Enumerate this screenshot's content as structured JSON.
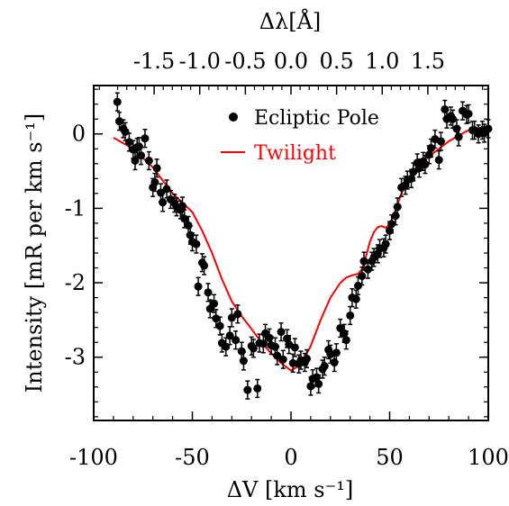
{
  "chart_data": {
    "type": "scatter",
    "xlabel": "ΔV [km s⁻¹]",
    "ylabel": "Intensity [mR per km s⁻¹]",
    "top_axis_label": "Δλ[Å]",
    "xlim": [
      -100,
      100
    ],
    "ylim": [
      -3.85,
      0.65
    ],
    "x_ticks": [
      -100,
      -50,
      0,
      50,
      100
    ],
    "x_tick_labels": [
      "-100",
      "-50",
      "0",
      "50",
      "100"
    ],
    "y_ticks": [
      0,
      -1,
      -2,
      -3
    ],
    "y_tick_labels": [
      "0",
      "-1",
      "-2",
      "-3"
    ],
    "top_ticks": [
      -1.5,
      -1.0,
      -0.5,
      0.0,
      0.5,
      1.0,
      1.5
    ],
    "top_tick_labels": [
      "-1.5",
      "-1.0",
      "-0.5",
      "0.0",
      "0.5",
      "1.0",
      "1.5"
    ],
    "top_unit_km_s_per_angstrom": 46.25,
    "legend_position": "top-right",
    "series": [
      {
        "name": "Ecliptic Pole",
        "style": "points-with-errorbars",
        "color": "#000000",
        "error": 0.12,
        "x": [
          -88,
          -87,
          -85,
          -84,
          -82,
          -80,
          -79,
          -78,
          -77,
          -76,
          -74,
          -72,
          -70,
          -69,
          -68,
          -66,
          -65,
          -63,
          -61,
          -59,
          -58,
          -56,
          -55,
          -54,
          -52,
          -51,
          -50,
          -48,
          -47,
          -45,
          -44,
          -42,
          -41,
          -39,
          -38,
          -36,
          -35,
          -33,
          -31,
          -30,
          -28,
          -27,
          -25,
          -24,
          -22,
          -20,
          -19,
          -17,
          -16,
          -14,
          -13,
          -11,
          -10,
          -8,
          -7,
          -5,
          -4,
          -2,
          -1,
          1,
          2,
          4,
          5,
          7,
          8,
          10,
          11,
          13,
          14,
          16,
          17,
          19,
          20,
          22,
          23,
          25,
          27,
          28,
          30,
          31,
          33,
          34,
          36,
          37,
          39,
          41,
          42,
          44,
          45,
          47,
          48,
          50,
          51,
          53,
          54,
          56,
          58,
          59,
          61,
          62,
          64,
          65,
          67,
          68,
          70,
          71,
          73,
          75,
          76,
          78,
          79,
          81,
          82,
          84,
          85,
          87,
          89,
          90,
          92,
          93,
          95,
          97,
          98,
          100
        ],
        "y": [
          0.43,
          0.17,
          0.07,
          0.03,
          -0.11,
          -0.21,
          -0.36,
          -0.18,
          -0.17,
          -0.29,
          -0.06,
          -0.36,
          -0.72,
          -0.65,
          -0.46,
          -0.79,
          -0.92,
          -0.74,
          -0.88,
          -0.93,
          -0.98,
          -1.02,
          -0.97,
          -1.14,
          -1.23,
          -1.36,
          -1.45,
          -1.48,
          -2.05,
          -1.73,
          -1.77,
          -2.13,
          -2.35,
          -2.28,
          -2.48,
          -2.58,
          -2.81,
          -2.86,
          -2.71,
          -2.47,
          -2.77,
          -2.42,
          -2.92,
          -3.05,
          -3.44,
          -2.85,
          -2.88,
          -3.42,
          -2.81,
          -2.82,
          -2.68,
          -2.74,
          -2.84,
          -2.86,
          -2.98,
          -2.66,
          -3.03,
          -2.75,
          -2.83,
          -3.08,
          -2.87,
          -3.09,
          -3.04,
          -3.07,
          -3.02,
          -3.39,
          -3.29,
          -3.27,
          -3.36,
          -3.16,
          -3.12,
          -2.9,
          -2.96,
          -3.07,
          -2.94,
          -2.61,
          -2.68,
          -2.77,
          -2.44,
          -2.2,
          -2.22,
          -2.04,
          -1.91,
          -1.71,
          -1.82,
          -1.71,
          -1.66,
          -1.61,
          -1.54,
          -1.53,
          -1.48,
          -1.3,
          -1.21,
          -1.1,
          -0.98,
          -0.72,
          -0.69,
          -0.62,
          -0.6,
          -0.51,
          -0.39,
          -0.46,
          -0.37,
          -0.41,
          -0.28,
          -0.19,
          -0.07,
          -0.35,
          -0.1,
          0.33,
          0.2,
          0.24,
          0.2,
          0.07,
          -0.04,
          0.31,
          0.26,
          0.27,
          0.05,
          0.05,
          0.0,
          0.05,
          0.01,
          0.07
        ]
      },
      {
        "name": "Twilight",
        "style": "line",
        "color": "#ff0000",
        "x": [
          -90,
          -80,
          -70,
          -60,
          -50,
          -45,
          -40,
          -35,
          -30,
          -25,
          -20,
          -15,
          -10,
          -5,
          0,
          5,
          10,
          15,
          20,
          25,
          28,
          31,
          34,
          36,
          38,
          40,
          42,
          44,
          46,
          48,
          50,
          53,
          56,
          59,
          62,
          66,
          70,
          75,
          80,
          85,
          90
        ],
        "y": [
          -0.05,
          -0.2,
          -0.45,
          -0.8,
          -1.05,
          -1.3,
          -1.6,
          -1.95,
          -2.25,
          -2.45,
          -2.62,
          -2.8,
          -2.95,
          -3.08,
          -3.18,
          -3.1,
          -2.85,
          -2.5,
          -2.2,
          -2.0,
          -1.93,
          -1.9,
          -1.88,
          -1.82,
          -1.65,
          -1.45,
          -1.32,
          -1.25,
          -1.24,
          -1.26,
          -1.22,
          -1.02,
          -0.8,
          -0.63,
          -0.5,
          -0.4,
          -0.3,
          -0.2,
          -0.1,
          -0.02,
          0.05
        ]
      }
    ]
  }
}
